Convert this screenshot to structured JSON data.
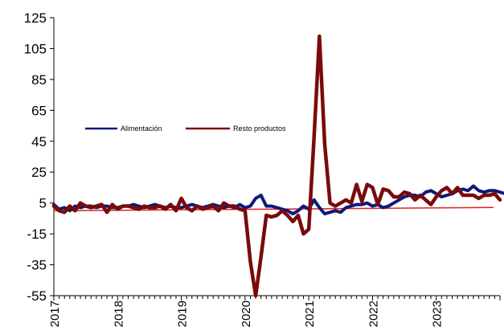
{
  "chart_data": {
    "type": "line",
    "title": "",
    "xlabel": "",
    "ylabel": "",
    "ylim": [
      -55,
      125
    ],
    "yticks": [
      125,
      105,
      85,
      65,
      45,
      25,
      5,
      -15,
      -35,
      -55
    ],
    "xlim": [
      0,
      84
    ],
    "xtick_labels": [
      {
        "label": "2017",
        "pos": 0
      },
      {
        "label": "2018",
        "pos": 12
      },
      {
        "label": "2019",
        "pos": 24
      },
      {
        "label": "2020",
        "pos": 36
      },
      {
        "label": "2021",
        "pos": 48
      },
      {
        "label": "2022",
        "pos": 60
      },
      {
        "label": "2023",
        "pos": 72
      }
    ],
    "reference_line": {
      "value": 0,
      "color": "#e02020"
    },
    "legend": {
      "placement": "upper-left"
    },
    "series": [
      {
        "name": "Alimentación",
        "color": "#0d1a7a",
        "values": [
          4,
          1,
          2,
          0,
          3,
          2,
          3,
          3,
          2,
          3,
          3,
          2,
          2,
          3,
          3,
          4,
          3,
          2,
          3,
          4,
          3,
          2,
          3,
          2,
          2,
          3,
          4,
          3,
          2,
          3,
          4,
          3,
          2,
          3,
          2,
          4,
          2,
          3,
          8,
          10,
          3,
          3,
          2,
          1,
          0,
          -2,
          0,
          3,
          1,
          7,
          2,
          -2,
          -1,
          0,
          -1,
          2,
          3,
          4,
          4,
          5,
          3,
          4,
          2,
          3,
          5,
          7,
          9,
          10,
          10,
          9,
          12,
          13,
          11,
          9,
          10,
          11,
          13,
          14,
          13,
          16,
          13,
          12,
          13,
          13,
          12,
          11,
          9
        ]
      },
      {
        "name": "Resto productos",
        "color": "#7a0a0a",
        "values": [
          3,
          0,
          -1,
          3,
          0,
          5,
          3,
          2,
          3,
          4,
          -1,
          4,
          1,
          3,
          3,
          2,
          1,
          3,
          2,
          2,
          3,
          1,
          4,
          0,
          8,
          2,
          0,
          3,
          1,
          2,
          3,
          0,
          5,
          3,
          3,
          1,
          0,
          -33,
          -55,
          -30,
          -3,
          -4,
          -3,
          0,
          -3,
          -7,
          -3,
          -15,
          -12,
          48,
          113,
          43,
          5,
          3,
          5,
          7,
          5,
          17,
          6,
          17,
          15,
          4,
          14,
          13,
          9,
          9,
          12,
          11,
          7,
          10,
          7,
          4,
          9,
          13,
          15,
          11,
          15,
          10,
          10,
          10,
          8,
          10,
          10,
          11,
          7
        ]
      }
    ]
  }
}
